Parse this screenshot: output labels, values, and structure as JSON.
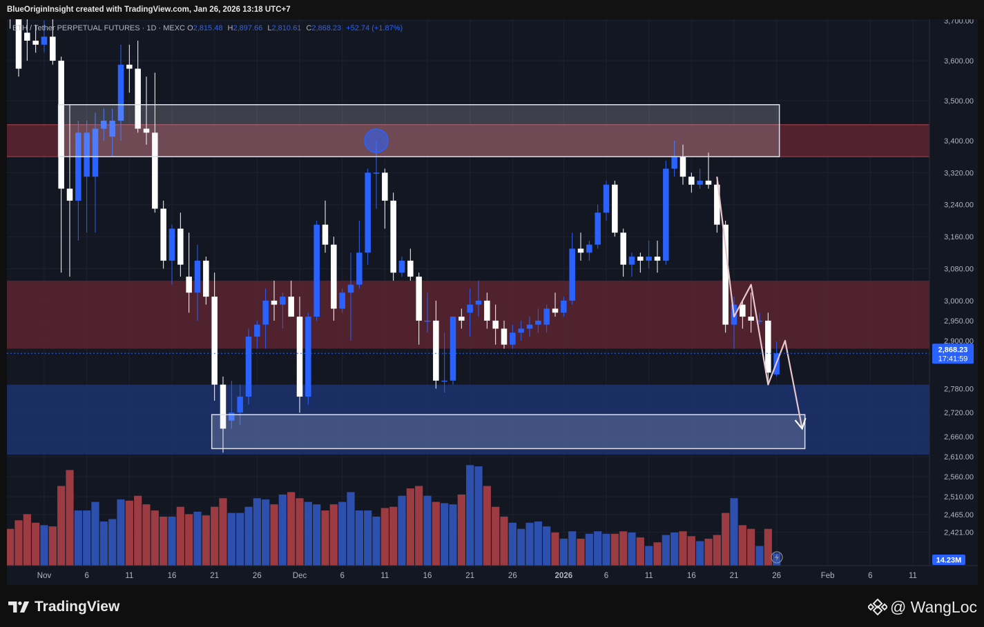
{
  "header": {
    "creator_text": "BlueOriginInsight created with TradingView.com, Jan 26, 2026 13:18 UTC+7"
  },
  "legend": {
    "symbol": "ETH / Tether PERPETUAL FUTURES · 1D · MEXC",
    "open_label": "O",
    "open": "2,815.48",
    "high_label": "H",
    "high": "2,897.66",
    "low_label": "L",
    "low": "2,810.61",
    "close_label": "C",
    "close": "2,868.23",
    "change": "+52.74 (+1.87%)"
  },
  "price_badge": {
    "price": "2,868.23",
    "countdown": "17:41:59"
  },
  "volume_badge": "14.23M",
  "footer": {
    "brand": "TradingView",
    "watermark": "@ WangLoc"
  },
  "colors": {
    "background": "#131722",
    "bull_candle": "#2962ff",
    "bear_candle": "#ffffff",
    "bull_volume": "#2d4fae",
    "bear_volume": "#9c3b41",
    "resistance_zone": "#5a2430",
    "support_zone": "#1c3270"
  },
  "icons": {
    "logo": "tradingview-logo-icon",
    "watermark": "binance-logo-icon",
    "bolt": "lightning-icon"
  },
  "chart_data": {
    "type": "candlestick",
    "y_axis": {
      "ticks": [
        {
          "label": "3,700.00",
          "value": 3700
        },
        {
          "label": "3,600.00",
          "value": 3600
        },
        {
          "label": "3,500.00",
          "value": 3500
        },
        {
          "label": "3,400.00",
          "value": 3400
        },
        {
          "label": "3,320.00",
          "value": 3320
        },
        {
          "label": "3,240.00",
          "value": 3240
        },
        {
          "label": "3,160.00",
          "value": 3160
        },
        {
          "label": "3,080.00",
          "value": 3080
        },
        {
          "label": "3,000.00",
          "value": 3000
        },
        {
          "label": "2,950.00",
          "value": 2950
        },
        {
          "label": "2,900.00",
          "value": 2900
        },
        {
          "label": "2,780.00",
          "value": 2780
        },
        {
          "label": "2,720.00",
          "value": 2720
        },
        {
          "label": "2,660.00",
          "value": 2660
        },
        {
          "label": "2,610.00",
          "value": 2610
        },
        {
          "label": "2,560.00",
          "value": 2560
        },
        {
          "label": "2,510.00",
          "value": 2510
        },
        {
          "label": "2,465.00",
          "value": 2465
        },
        {
          "label": "2,421.00",
          "value": 2421
        }
      ]
    },
    "x_axis": {
      "ticks": [
        {
          "label": "Nov",
          "date": "2025-11-01",
          "bold": false
        },
        {
          "label": "6",
          "date": "2025-11-06",
          "bold": false
        },
        {
          "label": "11",
          "date": "2025-11-11",
          "bold": false
        },
        {
          "label": "16",
          "date": "2025-11-16",
          "bold": false
        },
        {
          "label": "21",
          "date": "2025-11-21",
          "bold": false
        },
        {
          "label": "26",
          "date": "2025-11-26",
          "bold": false
        },
        {
          "label": "Dec",
          "date": "2025-12-01",
          "bold": false
        },
        {
          "label": "6",
          "date": "2025-12-06",
          "bold": false
        },
        {
          "label": "11",
          "date": "2025-12-11",
          "bold": false
        },
        {
          "label": "16",
          "date": "2025-12-16",
          "bold": false
        },
        {
          "label": "21",
          "date": "2025-12-21",
          "bold": false
        },
        {
          "label": "26",
          "date": "2025-12-26",
          "bold": false
        },
        {
          "label": "2026",
          "date": "2026-01-01",
          "bold": true
        },
        {
          "label": "6",
          "date": "2026-01-06",
          "bold": false
        },
        {
          "label": "11",
          "date": "2026-01-11",
          "bold": false
        },
        {
          "label": "16",
          "date": "2026-01-16",
          "bold": false
        },
        {
          "label": "21",
          "date": "2026-01-21",
          "bold": false
        },
        {
          "label": "26",
          "date": "2026-01-26",
          "bold": false
        },
        {
          "label": "Feb",
          "date": "2026-02-01",
          "bold": false
        },
        {
          "label": "6",
          "date": "2026-02-06",
          "bold": false
        },
        {
          "label": "11",
          "date": "2026-02-11",
          "bold": false
        }
      ]
    },
    "candles": [
      {
        "d": "2025-10-28",
        "o": 3900,
        "h": 3920,
        "l": 3680,
        "c": 3740,
        "v": 3.0
      },
      {
        "d": "2025-10-29",
        "o": 3740,
        "h": 3760,
        "l": 3560,
        "c": 3580,
        "v": 3.7
      },
      {
        "d": "2025-10-30",
        "o": 3670,
        "h": 3720,
        "l": 3600,
        "c": 3650,
        "v": 4.2
      },
      {
        "d": "2025-10-31",
        "o": 3650,
        "h": 3690,
        "l": 3620,
        "c": 3640,
        "v": 3.5
      },
      {
        "d": "2025-11-01",
        "o": 3640,
        "h": 3700,
        "l": 3620,
        "c": 3660,
        "v": 3.3
      },
      {
        "d": "2025-11-02",
        "o": 3660,
        "h": 3720,
        "l": 3590,
        "c": 3600,
        "v": 3.2
      },
      {
        "d": "2025-11-03",
        "o": 3600,
        "h": 3610,
        "l": 3070,
        "c": 3280,
        "v": 6.5
      },
      {
        "d": "2025-11-04",
        "o": 3280,
        "h": 3490,
        "l": 3060,
        "c": 3250,
        "v": 7.8
      },
      {
        "d": "2025-11-05",
        "o": 3250,
        "h": 3450,
        "l": 3150,
        "c": 3420,
        "v": 4.5
      },
      {
        "d": "2025-11-06",
        "o": 3310,
        "h": 3450,
        "l": 3170,
        "c": 3420,
        "v": 4.5
      },
      {
        "d": "2025-11-07",
        "o": 3310,
        "h": 3470,
        "l": 3170,
        "c": 3430,
        "v": 5.2
      },
      {
        "d": "2025-11-08",
        "o": 3430,
        "h": 3480,
        "l": 3400,
        "c": 3450,
        "v": 3.6
      },
      {
        "d": "2025-11-09",
        "o": 3410,
        "h": 3480,
        "l": 3360,
        "c": 3450,
        "v": 3.8
      },
      {
        "d": "2025-11-10",
        "o": 3450,
        "h": 3640,
        "l": 3400,
        "c": 3590,
        "v": 5.4
      },
      {
        "d": "2025-11-11",
        "o": 3590,
        "h": 3640,
        "l": 3520,
        "c": 3580,
        "v": 5.3
      },
      {
        "d": "2025-11-12",
        "o": 3580,
        "h": 3650,
        "l": 3420,
        "c": 3430,
        "v": 5.7
      },
      {
        "d": "2025-11-13",
        "o": 3430,
        "h": 3560,
        "l": 3390,
        "c": 3420,
        "v": 5.0
      },
      {
        "d": "2025-11-14",
        "o": 3420,
        "h": 3570,
        "l": 3220,
        "c": 3230,
        "v": 4.5
      },
      {
        "d": "2025-11-15",
        "o": 3230,
        "h": 3250,
        "l": 3080,
        "c": 3100,
        "v": 4.0
      },
      {
        "d": "2025-11-16",
        "o": 3100,
        "h": 3190,
        "l": 3040,
        "c": 3180,
        "v": 4.0
      },
      {
        "d": "2025-11-17",
        "o": 3180,
        "h": 3220,
        "l": 3060,
        "c": 3090,
        "v": 4.8
      },
      {
        "d": "2025-11-18",
        "o": 3060,
        "h": 3170,
        "l": 2970,
        "c": 3020,
        "v": 4.2
      },
      {
        "d": "2025-11-19",
        "o": 3020,
        "h": 3140,
        "l": 2950,
        "c": 3100,
        "v": 4.4
      },
      {
        "d": "2025-11-20",
        "o": 3100,
        "h": 3110,
        "l": 2990,
        "c": 3010,
        "v": 4.1
      },
      {
        "d": "2025-11-21",
        "o": 3010,
        "h": 3070,
        "l": 2750,
        "c": 2790,
        "v": 4.8
      },
      {
        "d": "2025-11-22",
        "o": 2790,
        "h": 2810,
        "l": 2620,
        "c": 2680,
        "v": 5.5
      },
      {
        "d": "2025-11-23",
        "o": 2700,
        "h": 2800,
        "l": 2680,
        "c": 2720,
        "v": 4.3
      },
      {
        "d": "2025-11-24",
        "o": 2720,
        "h": 2790,
        "l": 2690,
        "c": 2760,
        "v": 4.3
      },
      {
        "d": "2025-11-25",
        "o": 2760,
        "h": 2930,
        "l": 2740,
        "c": 2910,
        "v": 4.8
      },
      {
        "d": "2025-11-26",
        "o": 2910,
        "h": 2950,
        "l": 2880,
        "c": 2940,
        "v": 5.5
      },
      {
        "d": "2025-11-27",
        "o": 2940,
        "h": 3030,
        "l": 2880,
        "c": 3000,
        "v": 5.4
      },
      {
        "d": "2025-11-28",
        "o": 3000,
        "h": 3050,
        "l": 2950,
        "c": 2990,
        "v": 5.0
      },
      {
        "d": "2025-11-29",
        "o": 2990,
        "h": 3020,
        "l": 2930,
        "c": 3010,
        "v": 5.8
      },
      {
        "d": "2025-11-30",
        "o": 3010,
        "h": 3050,
        "l": 2960,
        "c": 2960,
        "v": 6.0
      },
      {
        "d": "2025-12-01",
        "o": 2960,
        "h": 3010,
        "l": 2720,
        "c": 2760,
        "v": 5.5
      },
      {
        "d": "2025-12-02",
        "o": 2760,
        "h": 2970,
        "l": 2740,
        "c": 2960,
        "v": 5.2
      },
      {
        "d": "2025-12-03",
        "o": 2960,
        "h": 3200,
        "l": 2950,
        "c": 3190,
        "v": 5.0
      },
      {
        "d": "2025-12-04",
        "o": 3190,
        "h": 3250,
        "l": 3120,
        "c": 3140,
        "v": 4.5
      },
      {
        "d": "2025-12-05",
        "o": 3140,
        "h": 3160,
        "l": 2950,
        "c": 2980,
        "v": 5.0
      },
      {
        "d": "2025-12-06",
        "o": 2980,
        "h": 3030,
        "l": 2970,
        "c": 3020,
        "v": 5.2
      },
      {
        "d": "2025-12-07",
        "o": 3020,
        "h": 3120,
        "l": 2900,
        "c": 3040,
        "v": 6.0
      },
      {
        "d": "2025-12-08",
        "o": 3040,
        "h": 3200,
        "l": 3030,
        "c": 3120,
        "v": 4.5
      },
      {
        "d": "2025-12-09",
        "o": 3120,
        "h": 3330,
        "l": 3090,
        "c": 3320,
        "v": 4.5
      },
      {
        "d": "2025-12-10",
        "o": 3320,
        "h": 3400,
        "l": 3230,
        "c": 3320,
        "v": 4.0
      },
      {
        "d": "2025-12-11",
        "o": 3320,
        "h": 3330,
        "l": 3180,
        "c": 3250,
        "v": 4.7
      },
      {
        "d": "2025-12-12",
        "o": 3250,
        "h": 3270,
        "l": 3050,
        "c": 3070,
        "v": 4.8
      },
      {
        "d": "2025-12-13",
        "o": 3070,
        "h": 3110,
        "l": 3060,
        "c": 3100,
        "v": 5.7
      },
      {
        "d": "2025-12-14",
        "o": 3100,
        "h": 3130,
        "l": 3050,
        "c": 3060,
        "v": 6.3
      },
      {
        "d": "2025-12-15",
        "o": 3060,
        "h": 3070,
        "l": 2890,
        "c": 2950,
        "v": 6.5
      },
      {
        "d": "2025-12-16",
        "o": 2950,
        "h": 3020,
        "l": 2920,
        "c": 2950,
        "v": 5.7
      },
      {
        "d": "2025-12-17",
        "o": 2950,
        "h": 3000,
        "l": 2780,
        "c": 2800,
        "v": 5.2
      },
      {
        "d": "2025-12-18",
        "o": 2800,
        "h": 2920,
        "l": 2770,
        "c": 2800,
        "v": 5.1
      },
      {
        "d": "2025-12-19",
        "o": 2800,
        "h": 2960,
        "l": 2790,
        "c": 2960,
        "v": 5.0
      },
      {
        "d": "2025-12-20",
        "o": 2960,
        "h": 2980,
        "l": 2930,
        "c": 2950,
        "v": 5.8
      },
      {
        "d": "2025-12-21",
        "o": 2970,
        "h": 3030,
        "l": 2910,
        "c": 2990,
        "v": 8.2
      },
      {
        "d": "2025-12-22",
        "o": 2990,
        "h": 3050,
        "l": 2960,
        "c": 3000,
        "v": 8.1
      },
      {
        "d": "2025-12-23",
        "o": 3000,
        "h": 3020,
        "l": 2930,
        "c": 2950,
        "v": 6.5
      },
      {
        "d": "2025-12-24",
        "o": 2950,
        "h": 2990,
        "l": 2890,
        "c": 2930,
        "v": 4.8
      },
      {
        "d": "2025-12-25",
        "o": 2930,
        "h": 2950,
        "l": 2880,
        "c": 2890,
        "v": 4.0
      },
      {
        "d": "2025-12-26",
        "o": 2890,
        "h": 2940,
        "l": 2880,
        "c": 2920,
        "v": 3.5
      },
      {
        "d": "2025-12-27",
        "o": 2920,
        "h": 2950,
        "l": 2900,
        "c": 2930,
        "v": 3.0
      },
      {
        "d": "2025-12-28",
        "o": 2930,
        "h": 2960,
        "l": 2910,
        "c": 2940,
        "v": 3.5
      },
      {
        "d": "2025-12-29",
        "o": 2940,
        "h": 2980,
        "l": 2920,
        "c": 2950,
        "v": 3.6
      },
      {
        "d": "2025-12-30",
        "o": 2940,
        "h": 2990,
        "l": 2920,
        "c": 2980,
        "v": 3.2
      },
      {
        "d": "2025-12-31",
        "o": 2980,
        "h": 3020,
        "l": 2960,
        "c": 2970,
        "v": 2.7
      },
      {
        "d": "2026-01-01",
        "o": 2970,
        "h": 3010,
        "l": 2960,
        "c": 3000,
        "v": 2.2
      },
      {
        "d": "2026-01-02",
        "o": 3000,
        "h": 3170,
        "l": 2990,
        "c": 3130,
        "v": 2.8
      },
      {
        "d": "2026-01-03",
        "o": 3130,
        "h": 3170,
        "l": 3100,
        "c": 3120,
        "v": 2.2
      },
      {
        "d": "2026-01-04",
        "o": 3120,
        "h": 3150,
        "l": 3100,
        "c": 3140,
        "v": 2.6
      },
      {
        "d": "2026-01-05",
        "o": 3140,
        "h": 3240,
        "l": 3130,
        "c": 3220,
        "v": 2.8
      },
      {
        "d": "2026-01-06",
        "o": 3220,
        "h": 3300,
        "l": 3200,
        "c": 3290,
        "v": 2.6
      },
      {
        "d": "2026-01-07",
        "o": 3290,
        "h": 3300,
        "l": 3160,
        "c": 3170,
        "v": 2.6
      },
      {
        "d": "2026-01-08",
        "o": 3170,
        "h": 3180,
        "l": 3060,
        "c": 3090,
        "v": 2.8
      },
      {
        "d": "2026-01-09",
        "o": 3090,
        "h": 3120,
        "l": 3060,
        "c": 3110,
        "v": 2.7
      },
      {
        "d": "2026-01-10",
        "o": 3110,
        "h": 3120,
        "l": 3070,
        "c": 3100,
        "v": 2.3
      },
      {
        "d": "2026-01-11",
        "o": 3100,
        "h": 3150,
        "l": 3080,
        "c": 3110,
        "v": 1.6
      },
      {
        "d": "2026-01-12",
        "o": 3110,
        "h": 3150,
        "l": 3070,
        "c": 3100,
        "v": 1.9
      },
      {
        "d": "2026-01-13",
        "o": 3100,
        "h": 3350,
        "l": 3090,
        "c": 3330,
        "v": 2.5
      },
      {
        "d": "2026-01-14",
        "o": 3330,
        "h": 3400,
        "l": 3310,
        "c": 3360,
        "v": 2.7
      },
      {
        "d": "2026-01-15",
        "o": 3360,
        "h": 3390,
        "l": 3290,
        "c": 3310,
        "v": 2.8
      },
      {
        "d": "2026-01-16",
        "o": 3310,
        "h": 3320,
        "l": 3270,
        "c": 3290,
        "v": 2.4
      },
      {
        "d": "2026-01-17",
        "o": 3290,
        "h": 3330,
        "l": 3280,
        "c": 3300,
        "v": 2.0
      },
      {
        "d": "2026-01-18",
        "o": 3300,
        "h": 3370,
        "l": 3280,
        "c": 3290,
        "v": 2.2
      },
      {
        "d": "2026-01-19",
        "o": 3290,
        "h": 3300,
        "l": 3170,
        "c": 3190,
        "v": 2.5
      },
      {
        "d": "2026-01-20",
        "o": 3190,
        "h": 3200,
        "l": 2920,
        "c": 2940,
        "v": 4.3
      },
      {
        "d": "2026-01-21",
        "o": 2940,
        "h": 3010,
        "l": 2880,
        "c": 2990,
        "v": 5.5
      },
      {
        "d": "2026-01-22",
        "o": 2990,
        "h": 3000,
        "l": 2930,
        "c": 2960,
        "v": 3.3
      },
      {
        "d": "2026-01-23",
        "o": 2960,
        "h": 3020,
        "l": 2920,
        "c": 2950,
        "v": 3.0
      },
      {
        "d": "2026-01-24",
        "o": 2950,
        "h": 2970,
        "l": 2940,
        "c": 2950,
        "v": 1.6
      },
      {
        "d": "2026-01-25",
        "o": 2950,
        "h": 2970,
        "l": 2790,
        "c": 2820,
        "v": 3.0
      },
      {
        "d": "2026-01-26",
        "o": 2815.48,
        "h": 2897.66,
        "l": 2810.61,
        "c": 2868.23,
        "v": 1.0
      }
    ],
    "zones": [
      {
        "kind": "resistance",
        "y_top": 3440,
        "y_bottom": 3360
      },
      {
        "kind": "mid-resistance",
        "y_top": 3050,
        "y_bottom": 2880
      },
      {
        "kind": "support",
        "y_top": 2790,
        "y_bottom": 2615
      },
      {
        "kind": "box",
        "x_start": "2025-11-03",
        "x_end": "2026-01-26",
        "y_top": 3490,
        "y_bottom": 3360
      },
      {
        "kind": "box",
        "x_start": "2025-11-21",
        "x_end": "2026-01-29",
        "y_top": 2715,
        "y_bottom": 2630
      }
    ],
    "projection_path": [
      {
        "d": "2026-01-19",
        "p": 3310
      },
      {
        "d": "2026-01-21",
        "p": 2960
      },
      {
        "d": "2026-01-23",
        "p": 3040
      },
      {
        "d": "2026-01-25",
        "p": 2790
      },
      {
        "d": "2026-01-27",
        "p": 2900
      },
      {
        "d": "2026-01-29",
        "p": 2680
      }
    ],
    "marker": {
      "d": "2025-12-10",
      "p": 3400
    },
    "current_price": 2868.23
  }
}
